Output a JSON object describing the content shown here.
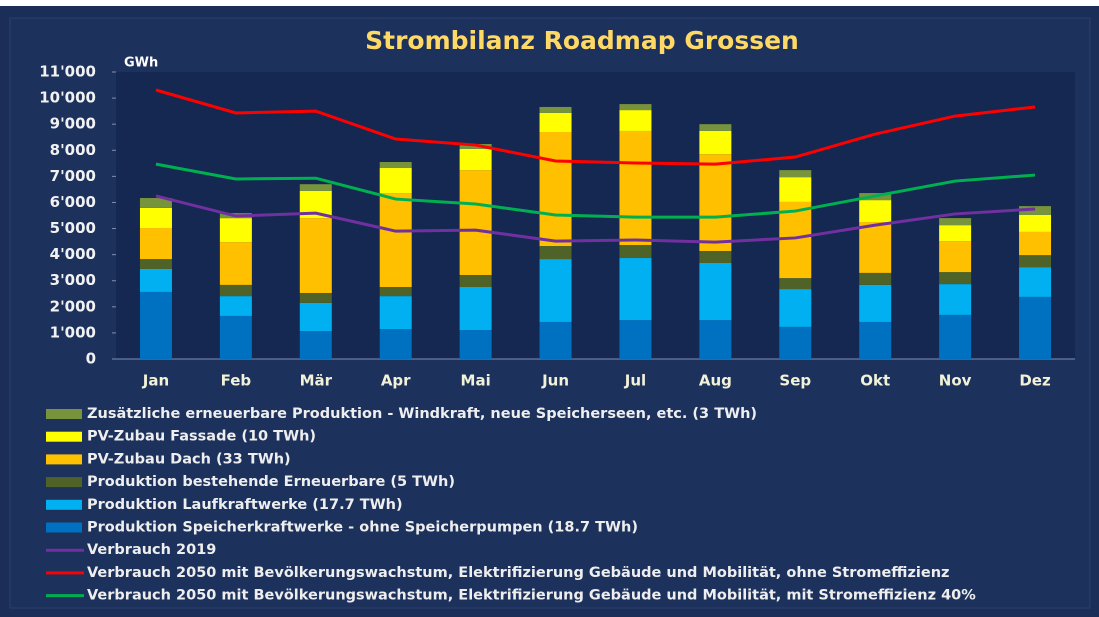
{
  "chart_data": {
    "type": "bar",
    "title": "Strombilanz Roadmap Grossen",
    "y_label": "GWh",
    "categories": [
      "Jan",
      "Feb",
      "Mär",
      "Apr",
      "Mai",
      "Jun",
      "Jul",
      "Aug",
      "Sep",
      "Okt",
      "Nov",
      "Dez"
    ],
    "ylim": [
      0,
      11000
    ],
    "yticks": [
      0,
      {
        "value": 1000,
        "label": "1'000"
      },
      {
        "value": 2000,
        "label": "2'000"
      },
      {
        "value": 3000,
        "label": "3'000"
      },
      {
        "value": 4000,
        "label": "4'000"
      },
      {
        "value": 5000,
        "label": "5'000"
      },
      {
        "value": 6000,
        "label": "6'000"
      },
      {
        "value": 7000,
        "label": "7'000"
      },
      {
        "value": 8000,
        "label": "8'000"
      },
      {
        "value": 9000,
        "label": "9'000"
      },
      {
        "value": 10000,
        "label": "10'000"
      },
      {
        "value": 11000,
        "label": "11'000"
      }
    ],
    "stacked": true,
    "series": [
      {
        "name": "Zusätzliche erneuerbare Produktion - Windkraft, neue Speicherseen, etc. (3 TWh)",
        "type": "bar",
        "color": "#77933c",
        "values": [
          380,
          190,
          260,
          230,
          190,
          230,
          230,
          260,
          270,
          270,
          270,
          340
        ]
      },
      {
        "name": "PV-Zubau Fassade (10 TWh)",
        "type": "bar",
        "color": "#ffff00",
        "values": [
          770,
          920,
          1040,
          960,
          810,
          730,
          800,
          890,
          950,
          840,
          610,
          650
        ]
      },
      {
        "name": "PV-Zubau Dach (33 TWh)",
        "type": "bar",
        "color": "#ffc000",
        "values": [
          1190,
          1640,
          2870,
          3600,
          4020,
          4370,
          4370,
          3710,
          2920,
          1950,
          1190,
          890
        ]
      },
      {
        "name": "Produktion bestehende Erneuerbare (5 TWh)",
        "type": "bar",
        "color": "#4f6228",
        "values": [
          380,
          430,
          380,
          350,
          460,
          500,
          500,
          460,
          420,
          460,
          460,
          460
        ]
      },
      {
        "name": "Produktion Laufkraftwerke (17.7 TWh)",
        "type": "bar",
        "color": "#00b0f0",
        "values": [
          880,
          760,
          1080,
          1260,
          1650,
          2410,
          2380,
          2190,
          1450,
          1420,
          1180,
          1140
        ]
      },
      {
        "name": "Produktion Speicherkraftwerke - ohne Speicherpumpen (18.7 TWh)",
        "type": "bar",
        "color": "#0070c0",
        "values": [
          2570,
          1650,
          1070,
          1150,
          1110,
          1420,
          1490,
          1490,
          1230,
          1420,
          1690,
          2380
        ]
      },
      {
        "name": "Verbrauch 2019",
        "type": "line",
        "color": "#7030a0",
        "values": [
          6250,
          5480,
          5590,
          4900,
          4940,
          4520,
          4560,
          4480,
          4640,
          5130,
          5560,
          5750
        ]
      },
      {
        "name": "Verbrauch 2050 mit Bevölkerungswachstum, Elektrifizierung Gebäude und Mobilität, ohne Stromeffizienz",
        "type": "line",
        "color": "#ff0000",
        "values": [
          10310,
          9430,
          9500,
          8430,
          8200,
          7590,
          7510,
          7470,
          7740,
          8620,
          9310,
          9660
        ]
      },
      {
        "name": "Verbrauch 2050 mit Bevölkerungswachstum, Elektrifizierung Gebäude und Mobilität, mit Stromeffizienz 40%",
        "type": "line",
        "color": "#00b050",
        "values": [
          7470,
          6900,
          6930,
          6130,
          5940,
          5520,
          5440,
          5440,
          5670,
          6250,
          6820,
          7050
        ]
      }
    ],
    "legend": "bottom"
  }
}
